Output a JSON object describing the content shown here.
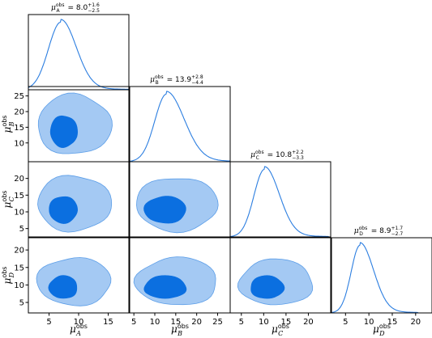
{
  "chart_data": {
    "type": "corner",
    "parameters": [
      "A",
      "B",
      "C",
      "D"
    ],
    "axis_labels": {
      "base": "μ",
      "sup": "obs",
      "subs": [
        "A",
        "B",
        "C",
        "D"
      ]
    },
    "titles": [
      {
        "label": "μ",
        "sup": "obs",
        "sub": "A",
        "value": "= 8.0",
        "plus": "+1.6",
        "minus": "−2.5"
      },
      {
        "label": "μ",
        "sup": "obs",
        "sub": "B",
        "value": "= 13.9",
        "plus": "+2.8",
        "minus": "−4.4"
      },
      {
        "label": "μ",
        "sup": "obs",
        "sub": "C",
        "value": "= 10.8",
        "plus": "+2.2",
        "minus": "−3.3"
      },
      {
        "label": "μ",
        "sup": "obs",
        "sub": "D",
        "value": "= 8.9",
        "plus": "+1.7",
        "minus": "−2.7"
      }
    ],
    "x_ranges": [
      [
        1.5,
        18.5
      ],
      [
        4.0,
        28.0
      ],
      [
        2.5,
        25.0
      ],
      [
        2.0,
        23.5
      ]
    ],
    "x_ticks": [
      [
        5,
        10,
        15
      ],
      [
        5,
        10,
        15,
        20,
        25
      ],
      [
        5,
        10,
        15,
        20
      ],
      [
        5,
        10,
        15,
        20
      ]
    ],
    "y_ranges": {
      "B": [
        4.0,
        28.0
      ],
      "C": [
        2.5,
        25.0
      ],
      "D": [
        2.0,
        23.5
      ]
    },
    "y_ticks": {
      "B": [
        10,
        15,
        20,
        25
      ],
      "C": [
        5,
        10,
        15,
        20
      ],
      "D": [
        5,
        10,
        15,
        20
      ]
    },
    "marginals": [
      {
        "param": "A",
        "mode": 7.0,
        "sigma_left": 2.1,
        "sigma_right": 2.6,
        "tail_end": 17.0
      },
      {
        "param": "B",
        "mode": 12.8,
        "sigma_left": 2.8,
        "sigma_right": 4.2,
        "tail_end": 27.0
      },
      {
        "param": "C",
        "mode": 10.2,
        "sigma_left": 2.4,
        "sigma_right": 3.3,
        "tail_end": 22.5
      },
      {
        "param": "D",
        "mode": 8.1,
        "sigma_left": 1.9,
        "sigma_right": 2.9,
        "tail_end": 18.5
      }
    ],
    "joint_contours": [
      {
        "x": "A",
        "y": "B",
        "inner": {
          "x": [
            5.2,
            9.8
          ],
          "y": [
            8.5,
            18.5
          ]
        },
        "outer": {
          "x": [
            3.0,
            15.5
          ],
          "y": [
            6.0,
            25.0
          ]
        }
      },
      {
        "x": "A",
        "y": "C",
        "inner": {
          "x": [
            5.0,
            9.8
          ],
          "y": [
            6.5,
            14.5
          ]
        },
        "outer": {
          "x": [
            3.0,
            15.5
          ],
          "y": [
            4.0,
            20.5
          ]
        }
      },
      {
        "x": "B",
        "y": "C",
        "inner": {
          "x": [
            7.5,
            17.5
          ],
          "y": [
            6.5,
            14.5
          ]
        },
        "outer": {
          "x": [
            5.5,
            25.0
          ],
          "y": [
            4.0,
            20.0
          ]
        }
      },
      {
        "x": "A",
        "y": "D",
        "inner": {
          "x": [
            5.0,
            9.8
          ],
          "y": [
            6.0,
            12.5
          ]
        },
        "outer": {
          "x": [
            3.0,
            15.5
          ],
          "y": [
            4.0,
            17.5
          ]
        }
      },
      {
        "x": "B",
        "y": "D",
        "inner": {
          "x": [
            7.5,
            17.5
          ],
          "y": [
            6.0,
            12.5
          ]
        },
        "outer": {
          "x": [
            5.5,
            25.0
          ],
          "y": [
            4.0,
            17.5
          ]
        }
      },
      {
        "x": "C",
        "y": "D",
        "inner": {
          "x": [
            7.0,
            14.5
          ],
          "y": [
            6.0,
            12.5
          ]
        },
        "outer": {
          "x": [
            4.5,
            21.0
          ],
          "y": [
            4.0,
            17.0
          ]
        }
      }
    ],
    "colors": {
      "line": "#2c7ee0",
      "contour_68": "#0b6fe0",
      "contour_95": "#a4c9f3"
    },
    "grid": false,
    "legend": "none"
  }
}
